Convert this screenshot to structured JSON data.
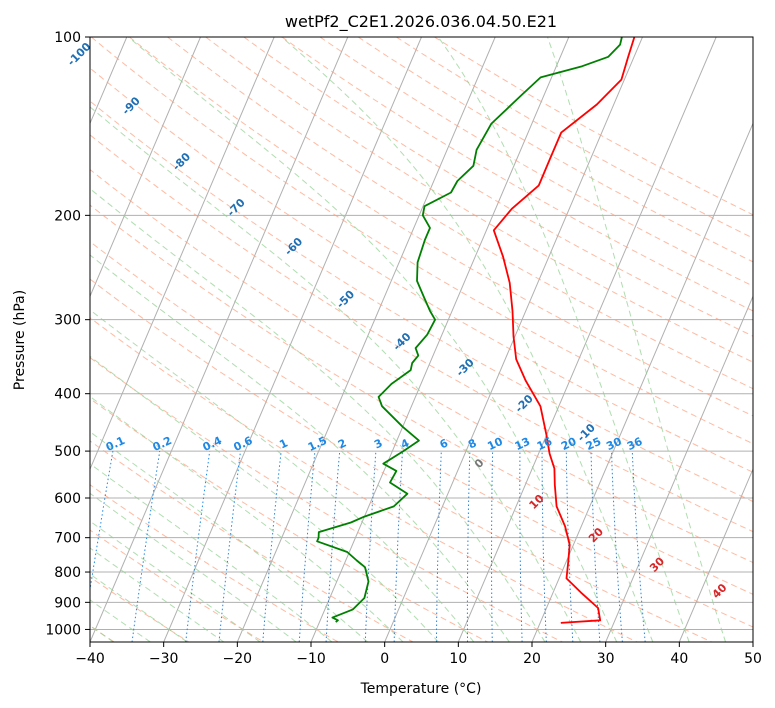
{
  "chart_data": {
    "type": "line",
    "title": "wetPf2_C2E1.2026.036.04.50.E21",
    "xlabel": "Temperature (°C)",
    "ylabel": "Pressure (hPa)",
    "xlim": [
      -40,
      50
    ],
    "ylim": [
      1050,
      100
    ],
    "x_ticks": [
      -40,
      -30,
      -20,
      -10,
      0,
      10,
      20,
      30,
      40,
      50
    ],
    "y_ticks": [
      100,
      200,
      300,
      400,
      500,
      600,
      700,
      800,
      900,
      1000
    ],
    "grid": true,
    "series": [
      {
        "name": "temperature",
        "color": "#ff0000",
        "points": [
          [
            22.8,
            975
          ],
          [
            28,
            965
          ],
          [
            27,
            920
          ],
          [
            24,
            870
          ],
          [
            21,
            820
          ],
          [
            20.3,
            770
          ],
          [
            19.5,
            720
          ],
          [
            17.8,
            670
          ],
          [
            15.5,
            620
          ],
          [
            14,
            570
          ],
          [
            13,
            535
          ],
          [
            11.5,
            505
          ],
          [
            10,
            470
          ],
          [
            7.5,
            420
          ],
          [
            4,
            380
          ],
          [
            1.5,
            350
          ],
          [
            -0.2,
            320
          ],
          [
            -1.8,
            290
          ],
          [
            -3.8,
            260
          ],
          [
            -6.2,
            235
          ],
          [
            -9,
            212
          ],
          [
            -7.8,
            195
          ],
          [
            -5.5,
            178
          ],
          [
            -5.5,
            160
          ],
          [
            -5.5,
            145
          ],
          [
            -2.3,
            130
          ],
          [
            -0.4,
            118
          ],
          [
            -0.8,
            108
          ],
          [
            -1.1,
            100
          ]
        ]
      },
      {
        "name": "dewpoint",
        "color": "#008000",
        "points": [
          [
            -7.8,
            972
          ],
          [
            -7.6,
            965
          ],
          [
            -8.5,
            955
          ],
          [
            -6.2,
            925
          ],
          [
            -5.3,
            885
          ],
          [
            -5.7,
            830
          ],
          [
            -7,
            785
          ],
          [
            -8.5,
            765
          ],
          [
            -10.3,
            740
          ],
          [
            -15,
            710
          ],
          [
            -15,
            700
          ],
          [
            -15.3,
            685
          ],
          [
            -11.5,
            660
          ],
          [
            -10,
            645
          ],
          [
            -6.6,
            620
          ],
          [
            -5.5,
            590
          ],
          [
            -8.5,
            565
          ],
          [
            -8.3,
            540
          ],
          [
            -10.5,
            525
          ],
          [
            -8.5,
            500
          ],
          [
            -7,
            480
          ],
          [
            -10,
            455
          ],
          [
            -14,
            420
          ],
          [
            -15,
            405
          ],
          [
            -14,
            385
          ],
          [
            -12.2,
            365
          ],
          [
            -12.4,
            355
          ],
          [
            -12,
            345
          ],
          [
            -12.8,
            335
          ],
          [
            -12,
            318
          ],
          [
            -11.8,
            300
          ],
          [
            -13,
            290
          ],
          [
            -14.6,
            275
          ],
          [
            -16.5,
            258
          ],
          [
            -17.5,
            240
          ],
          [
            -17.8,
            220
          ],
          [
            -17.8,
            210
          ],
          [
            -19.5,
            200
          ],
          [
            -19.8,
            193
          ],
          [
            -17,
            183
          ],
          [
            -16.8,
            175
          ],
          [
            -15.5,
            165
          ],
          [
            -16,
            155
          ],
          [
            -15.5,
            140
          ],
          [
            -13,
            125
          ],
          [
            -11.5,
            117
          ],
          [
            -6.5,
            112
          ],
          [
            -3.5,
            108
          ],
          [
            -2.6,
            103
          ],
          [
            -2.8,
            100
          ]
        ]
      }
    ],
    "mixing_ratio_labels": [
      "0.1",
      "0.2",
      "0.4",
      "0.6",
      "1",
      "1.5",
      "2",
      "3",
      "4",
      "6",
      "8",
      "10",
      "13",
      "16",
      "20",
      "25",
      "30",
      "36"
    ],
    "mixing_ratio_values": [
      0.1,
      0.2,
      0.4,
      0.6,
      1,
      1.5,
      2,
      3,
      4,
      6,
      8,
      10,
      13,
      16,
      20,
      25,
      30,
      36
    ],
    "moist_adiabat_labels": [
      "-100",
      "-90",
      "-80",
      "-70",
      "-60",
      "-50",
      "-40",
      "-30",
      "-20",
      "-10"
    ],
    "moist_adiabat_values": [
      -100,
      -90,
      -80,
      -70,
      -60,
      -50,
      -40,
      -30,
      -20,
      -10
    ],
    "dry_adiabat_labels": [
      "0",
      "10",
      "20",
      "30",
      "40"
    ],
    "dry_adiabat_values": [
      0,
      10,
      20,
      30,
      40
    ]
  },
  "colors": {
    "temperature": "#ff0000",
    "dewpoint": "#008000",
    "mixing_ratio": "#1e88e5",
    "moist_label": "#1f6fb5",
    "dry_label": "#d62728",
    "zero_label": "#777777"
  }
}
